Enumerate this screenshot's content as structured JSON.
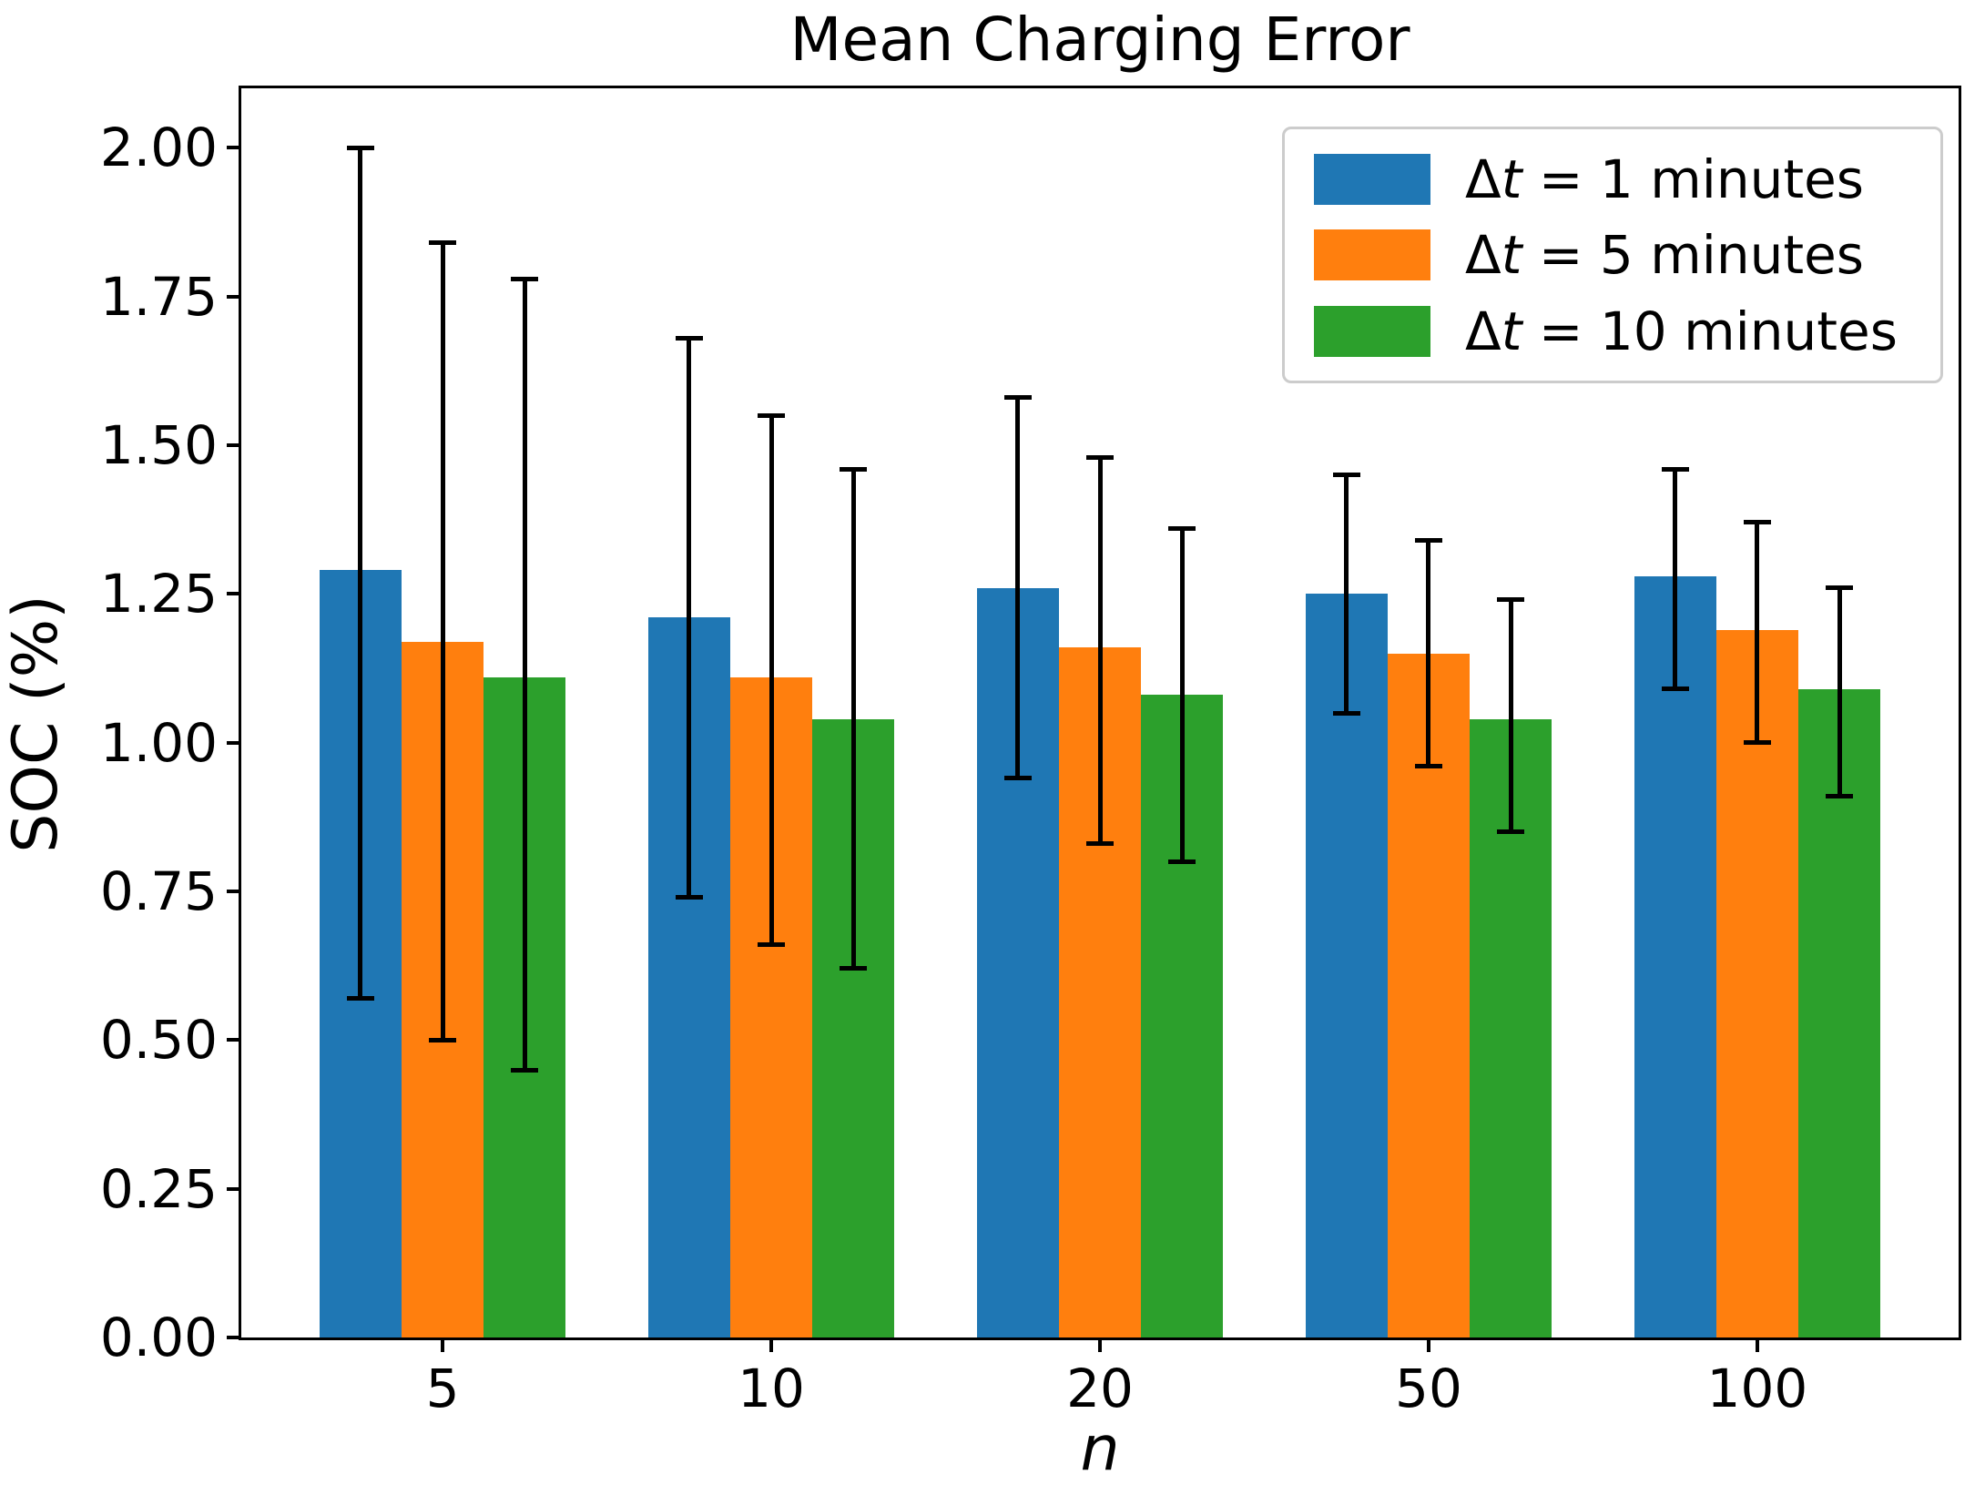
{
  "title": "Mean Charging Error",
  "axes": {
    "ylabel": "SOC (%)",
    "xlabel": "n"
  },
  "legend": {
    "position": "upper right",
    "items": [
      {
        "delta": "Δ",
        "var": "t",
        "rest": "= 1 minutes",
        "color": "#1f77b4"
      },
      {
        "delta": "Δ",
        "var": "t",
        "rest": "= 5 minutes",
        "color": "#ff7f0e"
      },
      {
        "delta": "Δ",
        "var": "t",
        "rest": "= 10 minutes",
        "color": "#2ca02c"
      }
    ]
  },
  "chart_data": {
    "type": "bar",
    "title": "Mean Charging Error",
    "xlabel": "n",
    "ylabel": "SOC (%)",
    "categories": [
      "5",
      "10",
      "20",
      "50",
      "100"
    ],
    "bar_width": 0.25,
    "grid": false,
    "legend_position": "upper right",
    "ylim": [
      0,
      2.1
    ],
    "yticks": [
      "0.00",
      "0.25",
      "0.50",
      "0.75",
      "1.00",
      "1.25",
      "1.50",
      "1.75",
      "2.00"
    ],
    "error_bars": true,
    "series": [
      {
        "name": "Δt = 1 minutes",
        "color": "#1f77b4",
        "values": [
          1.29,
          1.21,
          1.26,
          1.25,
          1.28
        ],
        "whisker_low": [
          0.57,
          0.74,
          0.94,
          1.05,
          1.09
        ],
        "whisker_high": [
          2.0,
          1.68,
          1.58,
          1.45,
          1.46
        ]
      },
      {
        "name": "Δt = 5 minutes",
        "color": "#ff7f0e",
        "values": [
          1.17,
          1.11,
          1.16,
          1.15,
          1.19
        ],
        "whisker_low": [
          0.5,
          0.66,
          0.83,
          0.96,
          1.0
        ],
        "whisker_high": [
          1.84,
          1.55,
          1.48,
          1.34,
          1.37
        ]
      },
      {
        "name": "Δt = 10 minutes",
        "color": "#2ca02c",
        "values": [
          1.11,
          1.04,
          1.08,
          1.04,
          1.09
        ],
        "whisker_low": [
          0.45,
          0.62,
          0.8,
          0.85,
          0.91
        ],
        "whisker_high": [
          1.78,
          1.46,
          1.36,
          1.24,
          1.26
        ]
      }
    ]
  }
}
